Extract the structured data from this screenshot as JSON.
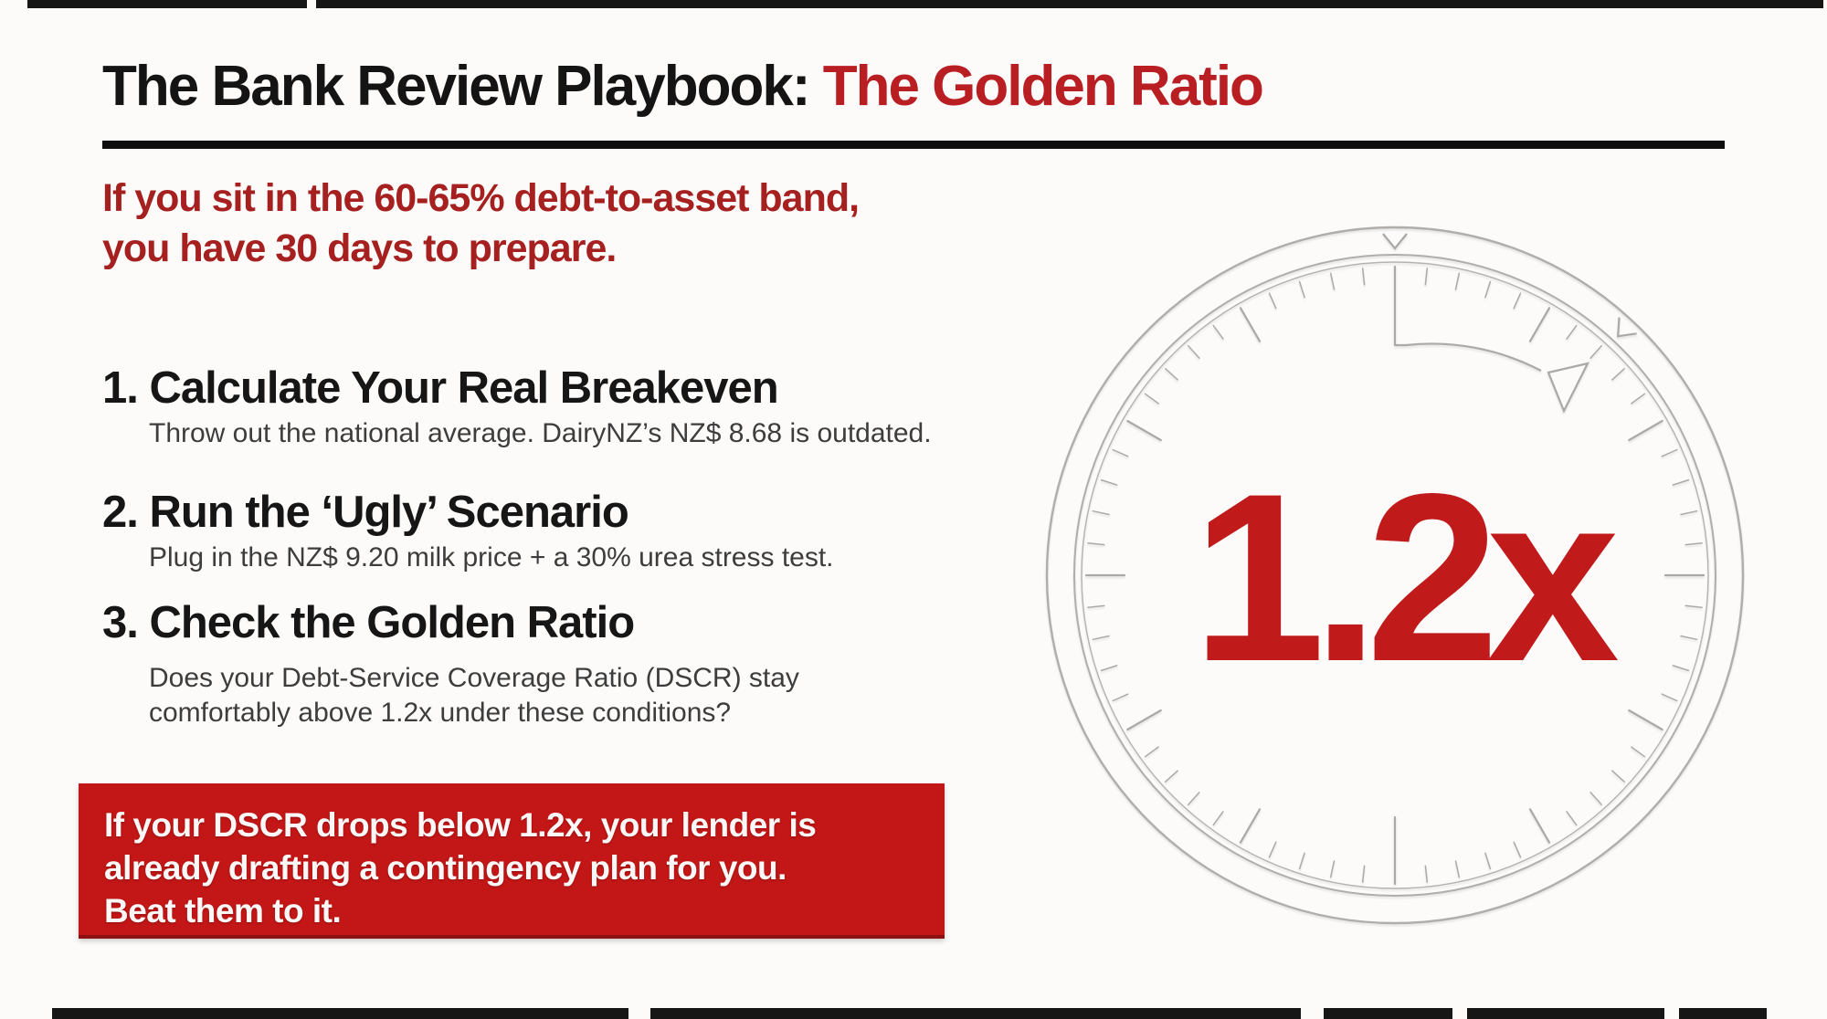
{
  "header": {
    "title_black": "The Bank Review Playbook: ",
    "title_red": "The Golden Ratio"
  },
  "subtitle": {
    "line1": "If you sit in the 60-65% debt-to-asset band,",
    "line2": "you have 30 days to prepare."
  },
  "steps": [
    {
      "heading": "1. Calculate Your Real Breakeven",
      "desc_lines": [
        "Throw out the national average. DairyNZ’s NZ$ 8.68 is outdated."
      ]
    },
    {
      "heading": "2. Run the ‘Ugly’ Scenario",
      "desc_lines": [
        "Plug in the NZ$ 9.20 milk price + a 30% urea stress test."
      ]
    },
    {
      "heading": "3. Check the Golden Ratio",
      "desc_lines": [
        "Does your Debt-Service Coverage Ratio (DSCR) stay",
        "comfortably above 1.2x under these conditions?"
      ]
    }
  ],
  "callout": {
    "line1": "If your DSCR drops below 1.2x, your lender is",
    "line2": "already drafting a contingency plan for you.",
    "line3": "Beat them to it."
  },
  "gauge": {
    "value_label": "1.2x"
  },
  "colors": {
    "title_accent_red": "#b91e23",
    "subtitle_red": "#a5201f",
    "callout_red": "#c31616",
    "gauge_value_red": "#c01a1a",
    "text_black": "#141414",
    "desc_gray": "#3d3d3d",
    "dial_gray": "#b1adab",
    "background": "#fcfbfa"
  }
}
